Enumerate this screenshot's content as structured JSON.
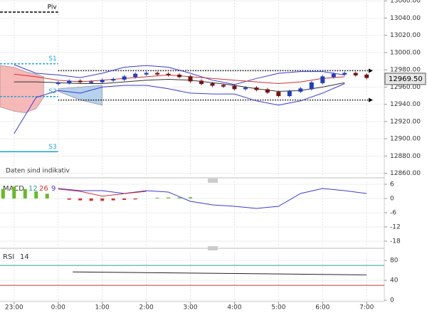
{
  "chart_data": [
    {
      "type": "candlestick",
      "note": "Daten sind indikativ",
      "ylim": [
        12858,
        13061
      ],
      "yticks": [
        {
          "value": 12860,
          "label": "12860.00"
        },
        {
          "value": 12880,
          "label": "12880.00"
        },
        {
          "value": 12900,
          "label": "12900.00"
        },
        {
          "value": 12920,
          "label": "12920.00"
        },
        {
          "value": 12940,
          "label": "12940.00"
        },
        {
          "value": 12960,
          "label": "12960.00"
        },
        {
          "value": 12980,
          "label": "12980.00"
        },
        {
          "value": 13000,
          "label": "13000.00"
        },
        {
          "value": 13020,
          "label": "13020.00"
        },
        {
          "value": 13040,
          "label": "13040.00"
        },
        {
          "value": 13060,
          "label": "13060.00"
        }
      ],
      "x": [
        1,
        1.25,
        1.5,
        1.75,
        2,
        2.25,
        2.5,
        2.75,
        3,
        3.25,
        3.5,
        3.75,
        4,
        4.25,
        4.5,
        4.75,
        5,
        5.25,
        5.5,
        5.75,
        6,
        6.25,
        6.5,
        6.75,
        7,
        7.25,
        7.5,
        7.75,
        8
      ],
      "open": [
        12964,
        12965,
        12967,
        12966,
        12966,
        12968,
        12969,
        12972,
        12975,
        12976,
        12975,
        12974,
        12972,
        12967,
        12964,
        12962,
        12961,
        12958,
        12959,
        12957,
        12954,
        12950,
        12955,
        12958,
        12965,
        12972,
        12975,
        12976,
        12974
      ],
      "high": [
        12967,
        12969,
        12969,
        12968,
        12970,
        12971,
        12974,
        12977,
        12978,
        12978,
        12977,
        12976,
        12974,
        12969,
        12966,
        12964,
        12963,
        12961,
        12961,
        12959,
        12956,
        12957,
        12960,
        12967,
        12974,
        12977,
        12978,
        12978,
        12976
      ],
      "low": [
        12962,
        12963,
        12964,
        12964,
        12964,
        12966,
        12967,
        12970,
        12973,
        12973,
        12972,
        12970,
        12965,
        12962,
        12960,
        12959,
        12956,
        12956,
        12955,
        12952,
        12948,
        12948,
        12953,
        12956,
        12963,
        12970,
        12973,
        12972,
        12969
      ],
      "close": [
        12965,
        12967,
        12966,
        12966,
        12968,
        12969,
        12972,
        12975,
        12976,
        12975,
        12974,
        12972,
        12967,
        12964,
        12962,
        12961,
        12958,
        12959,
        12957,
        12954,
        12950,
        12955,
        12958,
        12965,
        12972,
        12975,
        12976,
        12974,
        12971
      ],
      "up_color": "#1f3fbf",
      "down_color": "#7a1010",
      "lines": [
        {
          "color": "#3a3ad6",
          "x": [
            0,
            0.5,
            1,
            1.5,
            2,
            2.5,
            3,
            3.5,
            4,
            4.5,
            5,
            5.5,
            6,
            6.5,
            7,
            7.5
          ],
          "values": [
            12986,
            12976,
            12974,
            12971,
            12976,
            12983,
            12985,
            12983,
            12976,
            12968,
            12963,
            12970,
            12976,
            12978,
            12978,
            12974
          ]
        },
        {
          "color": "#3a3ad6",
          "x": [
            0,
            0.5,
            1,
            1.5,
            2,
            2.5,
            3,
            3.5,
            4,
            4.5,
            5,
            5.5,
            6,
            6.5,
            7,
            7.5
          ],
          "values": [
            12906,
            12948,
            12956,
            12953,
            12960,
            12962,
            12962,
            12958,
            12953,
            12952,
            12952,
            12944,
            12939,
            12944,
            12953,
            12964
          ]
        },
        {
          "color": "#d03030",
          "x": [
            0,
            0.5,
            1,
            1.5,
            2,
            2.5,
            3,
            3.5,
            4,
            4.5,
            5,
            5.5,
            6,
            6.5,
            7,
            7.5
          ],
          "values": [
            12975,
            12972,
            12968,
            12966,
            12968,
            12970,
            12972,
            12974,
            12972,
            12970,
            12968,
            12966,
            12964,
            12966,
            12970,
            12972
          ]
        },
        {
          "color": "#333333",
          "x": [
            0,
            0.5,
            1,
            1.5,
            2,
            2.5,
            3,
            3.5,
            4,
            4.5,
            5,
            5.5,
            6,
            6.5,
            7,
            7.5
          ],
          "values": [
            12966,
            12966,
            12965,
            12964,
            12964,
            12966,
            12968,
            12969,
            12968,
            12965,
            12962,
            12958,
            12955,
            12956,
            12960,
            12965
          ]
        }
      ],
      "clouds": [
        {
          "color": "#f4a0a0",
          "x": [
            -0.32,
            0,
            0.25,
            0.5,
            0.67
          ],
          "top": [
            12985,
            12983,
            12978,
            12975,
            12972
          ],
          "bottom": [
            12937,
            12932,
            12930,
            12935,
            12948
          ]
        },
        {
          "color": "#9dc3e6",
          "x": [
            1,
            1.5,
            2
          ],
          "top": [
            12958,
            12960,
            12962
          ],
          "bottom": [
            12955,
            12945,
            12939
          ]
        }
      ],
      "pivots": [
        {
          "label": "Piv",
          "value": 13047,
          "color": "#000000"
        },
        {
          "label": "S1",
          "value": 12987,
          "color": "#1aa3d9"
        },
        {
          "label": "S2",
          "value": 12949,
          "color": "#1aa3d9"
        },
        {
          "label": "S3",
          "value": 12885,
          "color": "#1aa3d9"
        }
      ],
      "levels": [
        12979,
        12945
      ],
      "price_label": {
        "value": 12969.5,
        "label": "12969.50"
      }
    },
    {
      "type": "macd",
      "title": "MACD",
      "params": [
        12,
        26,
        9
      ],
      "ylim": [
        -19.8,
        7.2
      ],
      "yticks": [
        6,
        0,
        -6,
        -12,
        -18
      ],
      "macd": {
        "color": "#3a3ad6",
        "x": [
          1,
          1.5,
          2,
          2.5,
          3,
          3.5,
          4,
          4.5,
          5,
          5.5,
          6,
          6.5,
          7,
          7.5,
          8
        ],
        "values": [
          4.2,
          3.3,
          3.3,
          2.1,
          3.3,
          2.7,
          -1.2,
          -2.7,
          -3.3,
          -4.2,
          -3.3,
          2.1,
          4.2,
          3.3,
          2.1
        ]
      },
      "signal": {
        "color": "#d03030",
        "x": [
          1,
          1.5,
          2,
          2.5,
          3
        ],
        "values": [
          4,
          3,
          1,
          2,
          3
        ]
      },
      "histogram": {
        "pos_color": "#66bb22",
        "neg_color": "#d03030",
        "x": [
          -0.25,
          0,
          0.25,
          0.5,
          0.75,
          1.25,
          1.5,
          1.75,
          2,
          2.25,
          2.5,
          2.75,
          3.25,
          3.5,
          3.75,
          4
        ],
        "values": [
          4,
          5,
          4,
          3,
          2,
          -0.5,
          -0.8,
          -1,
          -1,
          -0.8,
          -0.6,
          -0.4,
          0.3,
          0.4,
          0.4,
          0.5
        ]
      }
    },
    {
      "type": "rsi",
      "title": "RSI",
      "period": 14,
      "ylim": [
        0,
        96
      ],
      "yticks": [
        80,
        40,
        0
      ],
      "levels": [
        {
          "value": 70,
          "color": "#2a9d9d"
        },
        {
          "value": 30,
          "color": "#d03030"
        }
      ],
      "line": {
        "color": "#222222",
        "x": [
          1.33,
          8
        ],
        "values": [
          57,
          51
        ]
      },
      "xlim": [
        -0.32,
        8.4
      ],
      "xticks": [
        {
          "value": 0,
          "label": "23:00"
        },
        {
          "value": 1,
          "label": "0:00"
        },
        {
          "value": 2,
          "label": "1:00"
        },
        {
          "value": 3,
          "label": "2:00"
        },
        {
          "value": 4,
          "label": "3:00"
        },
        {
          "value": 5,
          "label": "4:00"
        },
        {
          "value": 6,
          "label": "5:00"
        },
        {
          "value": 7,
          "label": "6:00"
        },
        {
          "value": 8,
          "label": "7:00"
        }
      ]
    }
  ]
}
